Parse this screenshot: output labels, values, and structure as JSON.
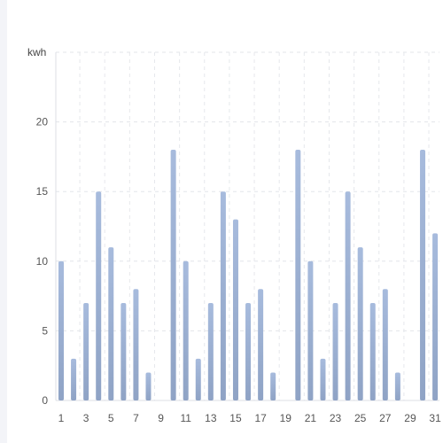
{
  "chart_data": {
    "type": "bar",
    "ylabel": "kwh",
    "ylim": [
      0,
      25
    ],
    "yticks": [
      0,
      5,
      10,
      15,
      20
    ],
    "grid": true,
    "bar_color_top": "#a7bbdd",
    "bar_color_bottom": "#8fa3c5",
    "categories": [
      "1",
      "2",
      "3",
      "4",
      "5",
      "6",
      "7",
      "8",
      "9",
      "10",
      "11",
      "12",
      "13",
      "14",
      "15",
      "16",
      "17",
      "18",
      "19",
      "20",
      "21",
      "22",
      "23",
      "24",
      "25",
      "26",
      "27",
      "28",
      "29",
      "30",
      "31"
    ],
    "xtick_labels": [
      "1",
      "3",
      "5",
      "7",
      "9",
      "11",
      "13",
      "15",
      "17",
      "19",
      "21",
      "23",
      "25",
      "27",
      "29",
      "31"
    ],
    "values": [
      10,
      3,
      7,
      15,
      11,
      7,
      8,
      2,
      0,
      18,
      10,
      3,
      7,
      15,
      13,
      7,
      8,
      2,
      0,
      18,
      10,
      3,
      7,
      15,
      11,
      7,
      8,
      2,
      0,
      18,
      12
    ]
  }
}
